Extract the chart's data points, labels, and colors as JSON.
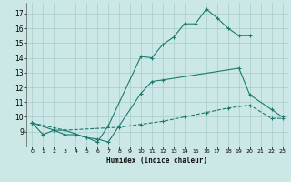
{
  "xlabel": "Humidex (Indice chaleur)",
  "bg_color": "#cce8e6",
  "grid_color": "#a8ccca",
  "line_color": "#1a7a6e",
  "xlim": [
    -0.5,
    23.5
  ],
  "ylim": [
    8.0,
    17.7
  ],
  "yticks": [
    9,
    10,
    11,
    12,
    13,
    14,
    15,
    16,
    17
  ],
  "xticks": [
    0,
    1,
    2,
    3,
    4,
    5,
    6,
    7,
    8,
    9,
    10,
    11,
    12,
    13,
    14,
    15,
    16,
    17,
    18,
    19,
    20,
    21,
    22,
    23
  ],
  "lines": [
    {
      "x": [
        0,
        1,
        2,
        3,
        4,
        5,
        6,
        7,
        10,
        11,
        12,
        13,
        14,
        15,
        16,
        17,
        18,
        19,
        20
      ],
      "y": [
        9.6,
        8.8,
        9.1,
        8.8,
        8.8,
        8.6,
        8.3,
        9.4,
        14.1,
        14.0,
        14.9,
        15.4,
        16.3,
        16.3,
        17.3,
        16.7,
        16.0,
        15.5,
        15.5
      ],
      "style": "-"
    },
    {
      "x": [
        0,
        2,
        3,
        5,
        6,
        7,
        10,
        11,
        12,
        19,
        20,
        22,
        23
      ],
      "y": [
        9.6,
        9.1,
        9.1,
        8.6,
        8.5,
        8.3,
        11.6,
        12.4,
        12.5,
        13.3,
        11.5,
        10.5,
        10.0
      ],
      "style": "-"
    },
    {
      "x": [
        0,
        3,
        8,
        10,
        12,
        14,
        16,
        18,
        20,
        22,
        23
      ],
      "y": [
        9.6,
        9.1,
        9.3,
        9.5,
        9.7,
        10.0,
        10.3,
        10.6,
        10.8,
        9.9,
        9.9
      ],
      "style": "--"
    }
  ]
}
